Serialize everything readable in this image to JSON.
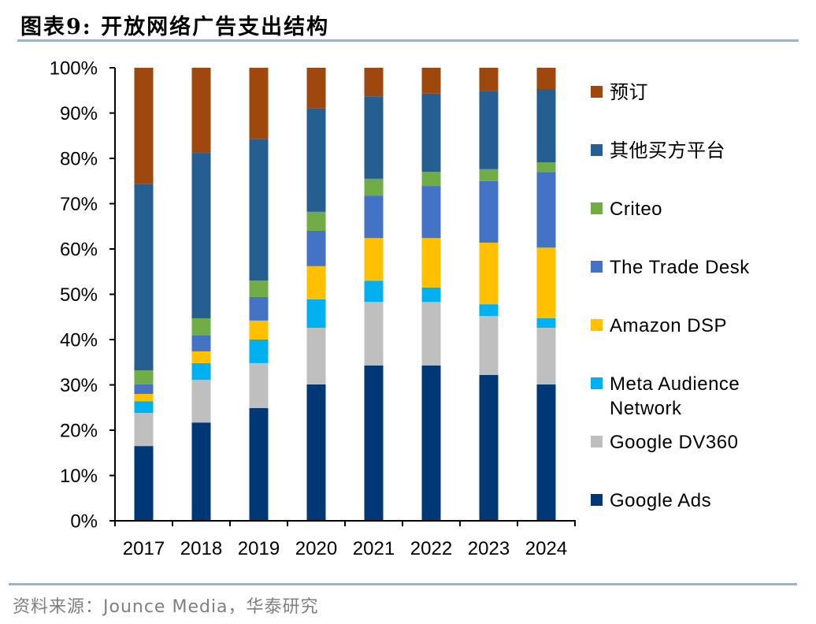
{
  "title": "图表9:  开放网络广告支出结构",
  "source": "资料来源：Jounce Media，华泰研究",
  "chart_data": {
    "type": "bar",
    "stacked": true,
    "percent_stacked": true,
    "title": "开放网络广告支出结构",
    "xlabel": "",
    "ylabel": "",
    "ylim": [
      0,
      100
    ],
    "yticks": [
      "0%",
      "10%",
      "20%",
      "30%",
      "40%",
      "50%",
      "60%",
      "70%",
      "80%",
      "90%",
      "100%"
    ],
    "categories": [
      "2017",
      "2018",
      "2019",
      "2020",
      "2021",
      "2022",
      "2023",
      "2024"
    ],
    "grid": false,
    "legend_position": "right",
    "series": [
      {
        "name": "Google Ads",
        "color": "#003876",
        "values": [
          16.5,
          21.7,
          24.9,
          30.1,
          34.3,
          34.3,
          32.2,
          30.1
        ]
      },
      {
        "name": "Google DV360",
        "color": "#bfbfbf",
        "values": [
          7.3,
          9.4,
          9.9,
          12.5,
          14.0,
          14.0,
          13.0,
          12.5
        ]
      },
      {
        "name": "Meta Audience Network",
        "color": "#00b0f0",
        "values": [
          2.6,
          3.7,
          5.2,
          6.3,
          4.7,
          3.2,
          2.6,
          2.1
        ]
      },
      {
        "name": "Amazon DSP",
        "color": "#ffc000",
        "values": [
          1.6,
          2.6,
          4.2,
          7.3,
          9.4,
          10.9,
          13.6,
          15.6
        ]
      },
      {
        "name": "The Trade Desk",
        "color": "#4472c4",
        "values": [
          2.1,
          3.6,
          5.2,
          7.8,
          9.4,
          11.5,
          13.6,
          16.7
        ]
      },
      {
        "name": "Criteo",
        "color": "#70ad47",
        "values": [
          3.1,
          3.7,
          3.6,
          4.2,
          3.7,
          3.1,
          2.6,
          2.1
        ]
      },
      {
        "name": "其他买方平台",
        "color": "#255e91",
        "values": [
          41.2,
          36.5,
          31.3,
          22.9,
          18.2,
          17.3,
          17.2,
          16.2
        ]
      },
      {
        "name": "预订",
        "color": "#9e480e",
        "values": [
          25.6,
          18.8,
          15.7,
          8.9,
          6.3,
          5.7,
          5.2,
          4.7
        ]
      }
    ],
    "legend": [
      {
        "label": "预订",
        "color": "#9e480e"
      },
      {
        "label": "其他买方平台",
        "color": "#255e91"
      },
      {
        "label": "Criteo",
        "color": "#70ad47"
      },
      {
        "label": "The Trade Desk",
        "color": "#4472c4"
      },
      {
        "label": "Amazon DSP",
        "color": "#ffc000"
      },
      {
        "label": "Meta Audience Network",
        "color": "#00b0f0"
      },
      {
        "label": "Google DV360",
        "color": "#bfbfbf"
      },
      {
        "label": "Google Ads",
        "color": "#003876"
      }
    ]
  }
}
